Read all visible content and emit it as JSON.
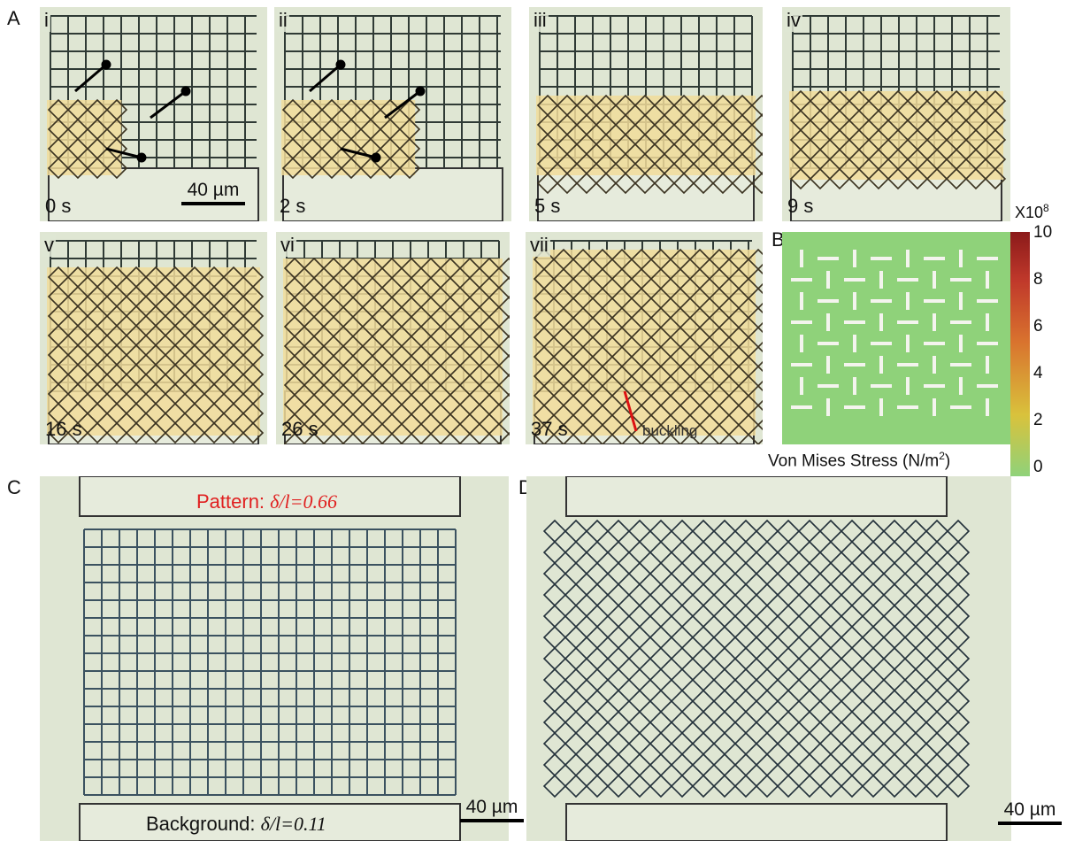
{
  "panel_a": {
    "label": "A",
    "frames": [
      {
        "roman": "i",
        "time": "0 s"
      },
      {
        "roman": "ii",
        "time": "2 s"
      },
      {
        "roman": "iii",
        "time": "5 s"
      },
      {
        "roman": "iv",
        "time": "9 s"
      },
      {
        "roman": "v",
        "time": "16 s"
      },
      {
        "roman": "vi",
        "time": "26 s"
      },
      {
        "roman": "vii",
        "time": "37 s"
      }
    ],
    "scale_bar": "40 µm",
    "annotation": "buckling"
  },
  "panel_b": {
    "label": "B",
    "scale": {
      "base": "X10",
      "exp": "8"
    },
    "ticks": [
      10,
      8,
      6,
      4,
      2,
      0
    ],
    "colorbar_label": {
      "before": "Von Mises Stress (N/m",
      "exp": "2",
      "after": ")"
    }
  },
  "panel_c": {
    "label": "C",
    "pattern": {
      "prefix": "Pattern: ",
      "formula": "δ/l=0.66"
    },
    "background": {
      "prefix": "Background: ",
      "formula": "δ/l=0.11"
    },
    "scale_bar": "40 µm"
  },
  "panel_d": {
    "label": "D",
    "scale_bar": "40 µm"
  }
}
